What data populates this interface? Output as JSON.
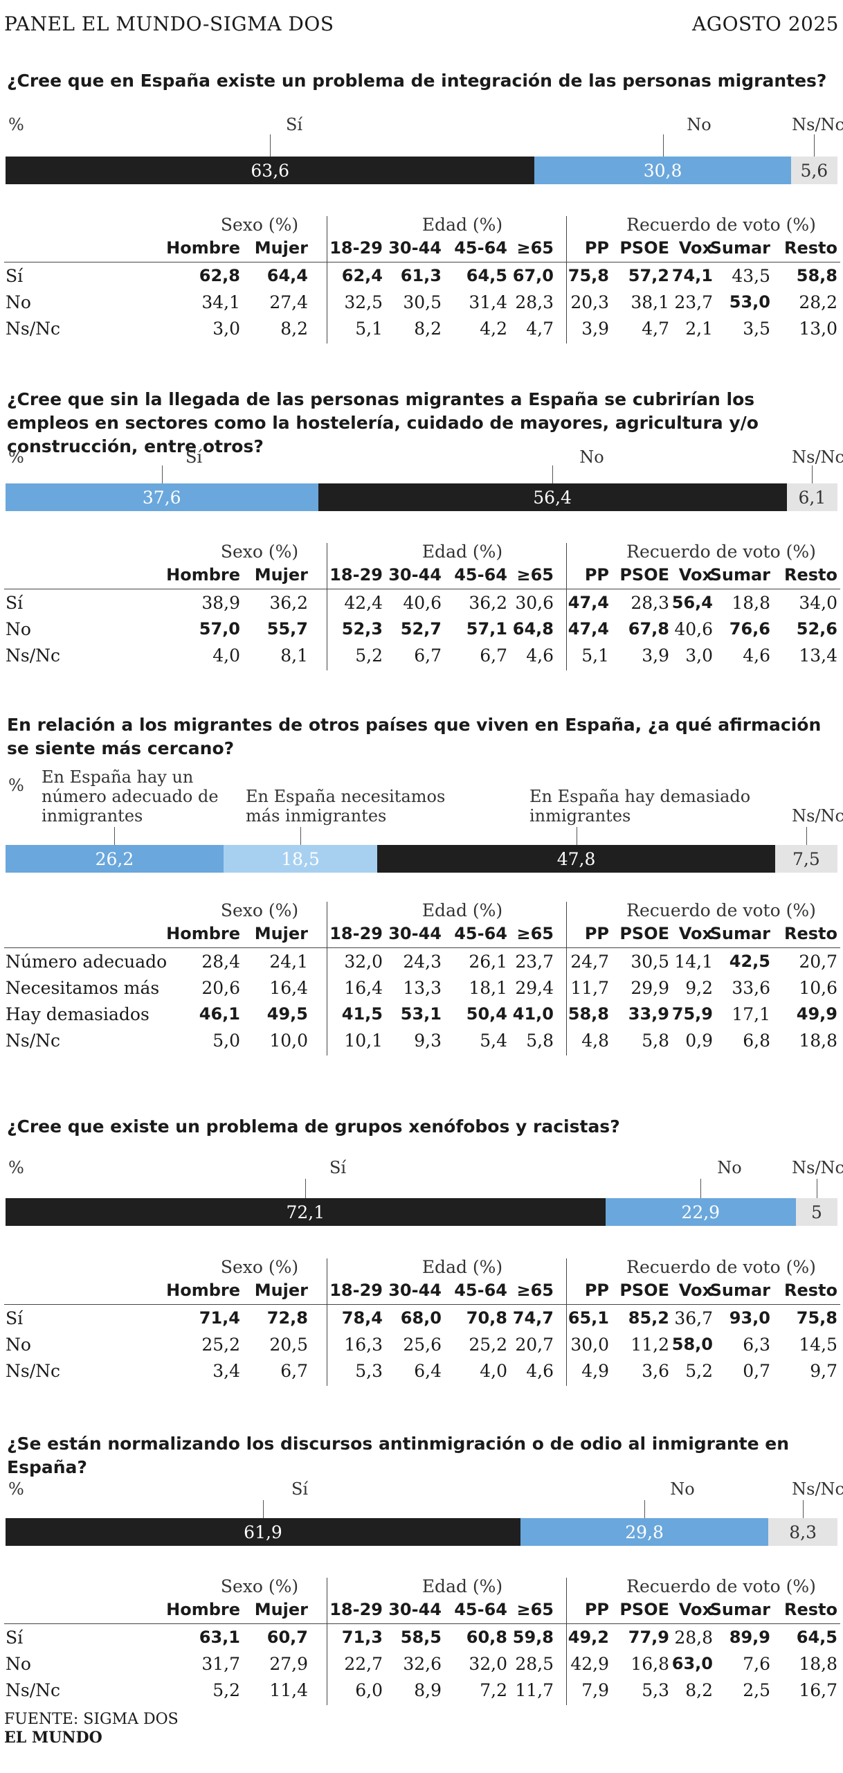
{
  "header": {
    "left": "PANEL EL MUNDO-SIGMA DOS",
    "right": "AGOSTO 2025"
  },
  "footer": {
    "source": "FUENTE: SIGMA DOS",
    "brand": "EL MUNDO"
  },
  "groups": [
    "Sexo (%)",
    "Edad (%)",
    "Recuerdo de voto (%)"
  ],
  "columns": [
    "Hombre",
    "Mujer",
    "18-29",
    "30-44",
    "45-64",
    "≥65",
    "PP",
    "PSOE",
    "Vox",
    "Sumar",
    "Resto"
  ],
  "chart_data": [
    {
      "type": "bar",
      "title": "¿Cree que en España existe un problema de integración de las personas migrantes?",
      "unit": "%",
      "series": [
        {
          "name": "Sí",
          "value": 63.6,
          "label": "63,6",
          "color": "#1f1f1f"
        },
        {
          "name": "No",
          "value": 30.8,
          "label": "30,8",
          "color": "#6aa7dc"
        },
        {
          "name": "Ns/Nc",
          "value": 5.6,
          "label": "5,6",
          "color": "#e4e4e4"
        }
      ],
      "table": {
        "rows": [
          {
            "label": "Sí",
            "values": [
              "62,8",
              "64,4",
              "62,4",
              "61,3",
              "64,5",
              "67,0",
              "75,8",
              "57,2",
              "74,1",
              "43,5",
              "58,8"
            ],
            "bold": [
              1,
              1,
              1,
              1,
              1,
              1,
              1,
              1,
              1,
              0,
              1
            ]
          },
          {
            "label": "No",
            "values": [
              "34,1",
              "27,4",
              "32,5",
              "30,5",
              "31,4",
              "28,3",
              "20,3",
              "38,1",
              "23,7",
              "53,0",
              "28,2"
            ],
            "bold": [
              0,
              0,
              0,
              0,
              0,
              0,
              0,
              0,
              0,
              1,
              0
            ]
          },
          {
            "label": "Ns/Nc",
            "values": [
              "3,0",
              "8,2",
              "5,1",
              "8,2",
              "4,2",
              "4,7",
              "3,9",
              "4,7",
              "2,1",
              "3,5",
              "13,0"
            ],
            "bold": [
              0,
              0,
              0,
              0,
              0,
              0,
              0,
              0,
              0,
              0,
              0
            ]
          }
        ]
      }
    },
    {
      "type": "bar",
      "title": "¿Cree que sin la llegada de las personas migrantes a España se cubrirían los empleos en sectores como la hostelería, cuidado de mayores, agricultura y/o construcción, entre otros?",
      "unit": "%",
      "series": [
        {
          "name": "Sí",
          "value": 37.6,
          "label": "37,6",
          "color": "#6aa7dc"
        },
        {
          "name": "No",
          "value": 56.4,
          "label": "56,4",
          "color": "#1f1f1f"
        },
        {
          "name": "Ns/Nc",
          "value": 6.1,
          "label": "6,1",
          "color": "#e4e4e4"
        }
      ],
      "table": {
        "rows": [
          {
            "label": "Sí",
            "values": [
              "38,9",
              "36,2",
              "42,4",
              "40,6",
              "36,2",
              "30,6",
              "47,4",
              "28,3",
              "56,4",
              "18,8",
              "34,0"
            ],
            "bold": [
              0,
              0,
              0,
              0,
              0,
              0,
              1,
              0,
              1,
              0,
              0
            ]
          },
          {
            "label": "No",
            "values": [
              "57,0",
              "55,7",
              "52,3",
              "52,7",
              "57,1",
              "64,8",
              "47,4",
              "67,8",
              "40,6",
              "76,6",
              "52,6"
            ],
            "bold": [
              1,
              1,
              1,
              1,
              1,
              1,
              1,
              1,
              0,
              1,
              1
            ]
          },
          {
            "label": "Ns/Nc",
            "values": [
              "4,0",
              "8,1",
              "5,2",
              "6,7",
              "6,7",
              "4,6",
              "5,1",
              "3,9",
              "3,0",
              "4,6",
              "13,4"
            ],
            "bold": [
              0,
              0,
              0,
              0,
              0,
              0,
              0,
              0,
              0,
              0,
              0
            ]
          }
        ]
      }
    },
    {
      "type": "bar",
      "title": "En relación a los migrantes de otros países que viven en España, ¿a qué afirmación se siente más cercano?",
      "unit": "%",
      "series": [
        {
          "name": "En España hay un número adecuado de inmigrantes",
          "value": 26.2,
          "label": "26,2",
          "color": "#6aa7dc"
        },
        {
          "name": "En España necesitamos más inmigrantes",
          "value": 18.5,
          "label": "18,5",
          "color": "#a7d0f0"
        },
        {
          "name": "En España hay demasiado inmigrantes",
          "value": 47.8,
          "label": "47,8",
          "color": "#1f1f1f"
        },
        {
          "name": "Ns/Nc",
          "value": 7.5,
          "label": "7,5",
          "color": "#e4e4e4"
        }
      ],
      "table": {
        "rows": [
          {
            "label": "Número adecuado",
            "values": [
              "28,4",
              "24,1",
              "32,0",
              "24,3",
              "26,1",
              "23,7",
              "24,7",
              "30,5",
              "14,1",
              "42,5",
              "20,7"
            ],
            "bold": [
              0,
              0,
              0,
              0,
              0,
              0,
              0,
              0,
              0,
              1,
              0
            ]
          },
          {
            "label": "Necesitamos más",
            "values": [
              "20,6",
              "16,4",
              "16,4",
              "13,3",
              "18,1",
              "29,4",
              "11,7",
              "29,9",
              "9,2",
              "33,6",
              "10,6"
            ],
            "bold": [
              0,
              0,
              0,
              0,
              0,
              0,
              0,
              0,
              0,
              0,
              0
            ]
          },
          {
            "label": "Hay demasiados",
            "values": [
              "46,1",
              "49,5",
              "41,5",
              "53,1",
              "50,4",
              "41,0",
              "58,8",
              "33,9",
              "75,9",
              "17,1",
              "49,9"
            ],
            "bold": [
              1,
              1,
              1,
              1,
              1,
              1,
              1,
              1,
              1,
              0,
              1
            ]
          },
          {
            "label": "Ns/Nc",
            "values": [
              "5,0",
              "10,0",
              "10,1",
              "9,3",
              "5,4",
              "5,8",
              "4,8",
              "5,8",
              "0,9",
              "6,8",
              "18,8"
            ],
            "bold": [
              0,
              0,
              0,
              0,
              0,
              0,
              0,
              0,
              0,
              0,
              0
            ]
          }
        ]
      }
    },
    {
      "type": "bar",
      "title": "¿Cree que existe un problema de grupos xenófobos y racistas?",
      "unit": "%",
      "series": [
        {
          "name": "Sí",
          "value": 72.1,
          "label": "72,1",
          "color": "#1f1f1f"
        },
        {
          "name": "No",
          "value": 22.9,
          "label": "22,9",
          "color": "#6aa7dc"
        },
        {
          "name": "Ns/Nc",
          "value": 5,
          "label": "5",
          "color": "#e4e4e4"
        }
      ],
      "table": {
        "rows": [
          {
            "label": "Sí",
            "values": [
              "71,4",
              "72,8",
              "78,4",
              "68,0",
              "70,8",
              "74,7",
              "65,1",
              "85,2",
              "36,7",
              "93,0",
              "75,8"
            ],
            "bold": [
              1,
              1,
              1,
              1,
              1,
              1,
              1,
              1,
              0,
              1,
              1
            ]
          },
          {
            "label": "No",
            "values": [
              "25,2",
              "20,5",
              "16,3",
              "25,6",
              "25,2",
              "20,7",
              "30,0",
              "11,2",
              "58,0",
              "6,3",
              "14,5"
            ],
            "bold": [
              0,
              0,
              0,
              0,
              0,
              0,
              0,
              0,
              1,
              0,
              0
            ]
          },
          {
            "label": "Ns/Nc",
            "values": [
              "3,4",
              "6,7",
              "5,3",
              "6,4",
              "4,0",
              "4,6",
              "4,9",
              "3,6",
              "5,2",
              "0,7",
              "9,7"
            ],
            "bold": [
              0,
              0,
              0,
              0,
              0,
              0,
              0,
              0,
              0,
              0,
              0
            ]
          }
        ]
      }
    },
    {
      "type": "bar",
      "title": "¿Se están normalizando los discursos antinmigración o de odio al inmigrante en España?",
      "unit": "%",
      "series": [
        {
          "name": "Sí",
          "value": 61.9,
          "label": "61,9",
          "color": "#1f1f1f"
        },
        {
          "name": "No",
          "value": 29.8,
          "label": "29,8",
          "color": "#6aa7dc"
        },
        {
          "name": "Ns/Nc",
          "value": 8.3,
          "label": "8,3",
          "color": "#e4e4e4"
        }
      ],
      "table": {
        "rows": [
          {
            "label": "Sí",
            "values": [
              "63,1",
              "60,7",
              "71,3",
              "58,5",
              "60,8",
              "59,8",
              "49,2",
              "77,9",
              "28,8",
              "89,9",
              "64,5"
            ],
            "bold": [
              1,
              1,
              1,
              1,
              1,
              1,
              1,
              1,
              0,
              1,
              1
            ]
          },
          {
            "label": "No",
            "values": [
              "31,7",
              "27,9",
              "22,7",
              "32,6",
              "32,0",
              "28,5",
              "42,9",
              "16,8",
              "63,0",
              "7,6",
              "18,8"
            ],
            "bold": [
              0,
              0,
              0,
              0,
              0,
              0,
              0,
              0,
              1,
              0,
              0
            ]
          },
          {
            "label": "Ns/Nc",
            "values": [
              "5,2",
              "11,4",
              "6,0",
              "8,9",
              "7,2",
              "11,7",
              "7,9",
              "5,3",
              "8,2",
              "2,5",
              "16,7"
            ],
            "bold": [
              0,
              0,
              0,
              0,
              0,
              0,
              0,
              0,
              0,
              0,
              0
            ]
          }
        ]
      }
    }
  ]
}
